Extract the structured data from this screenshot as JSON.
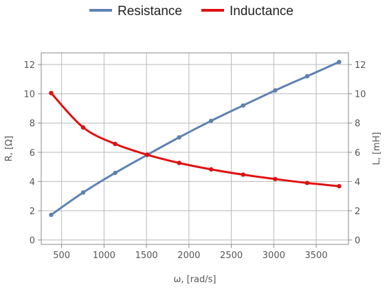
{
  "chart_data": {
    "type": "line",
    "x_label": "ω, [rad/s]",
    "y_left_label": "R, [Ω]",
    "y_right_label": "L, [mH]",
    "xlim": [
      260,
      3880
    ],
    "ylim": [
      -0.3,
      12.8
    ],
    "x_ticks": [
      500,
      1000,
      1500,
      2000,
      2500,
      3000,
      3500
    ],
    "y_ticks": [
      0,
      2,
      4,
      6,
      8,
      10,
      12
    ],
    "grid": true,
    "legend_position": "top",
    "series": [
      {
        "name": "Resistance",
        "axis": "left",
        "color": "#5e81b5",
        "x": [
          377,
          754,
          1131,
          1508,
          1885,
          2262,
          2639,
          3016,
          3393,
          3770
        ],
        "y": [
          1.72,
          3.25,
          4.59,
          5.82,
          7.02,
          8.15,
          9.2,
          10.23,
          11.2,
          12.18
        ]
      },
      {
        "name": "Inductance",
        "axis": "right",
        "color": "#e01010",
        "x": [
          377,
          754,
          1131,
          1508,
          1885,
          2262,
          2639,
          3016,
          3393,
          3770
        ],
        "y": [
          10.05,
          7.7,
          6.57,
          5.83,
          5.27,
          4.83,
          4.47,
          4.17,
          3.9,
          3.68
        ]
      }
    ]
  }
}
